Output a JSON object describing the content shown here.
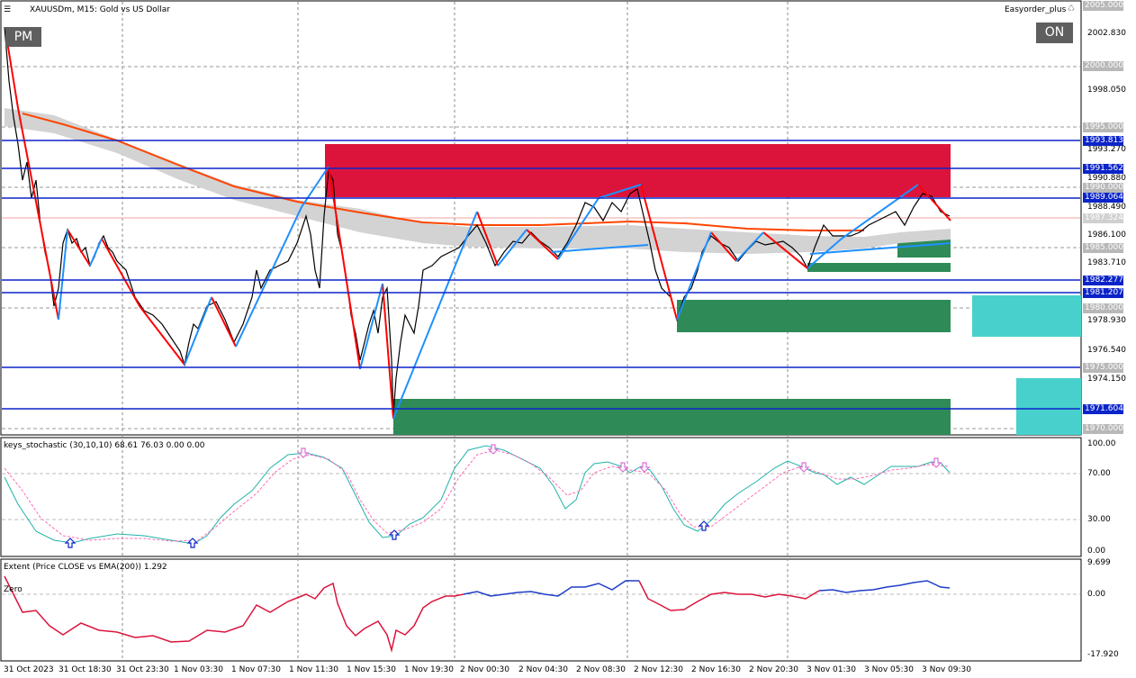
{
  "header": {
    "symbol_title": "XAUUSDm, M15:  Gold vs US Dollar",
    "expert_name": "Easyorder_plus"
  },
  "buttons": {
    "pm": "PM",
    "on": "ON"
  },
  "colors": {
    "level_line": "#0b24c9",
    "supply_zone": "#dc143c",
    "demand_zone": "#2e8b57",
    "cyan_zone": "#48d1cc",
    "ema_line": "#ff4500",
    "zigzag_down": "#ff0000",
    "zigzag_up": "#1e90ff"
  },
  "price_axis": {
    "labels": [
      "2002.830",
      "1998.050",
      "1993.270",
      "1990.880",
      "1988.490",
      "1986.100",
      "1983.710",
      "1978.930",
      "1976.540",
      "1974.150"
    ],
    "tags": [
      {
        "text": "2005.000",
        "style": "gray"
      },
      {
        "text": "2000.000",
        "style": "gray"
      },
      {
        "text": "1995.000",
        "style": "gray"
      },
      {
        "text": "1993.813",
        "style": "blue"
      },
      {
        "text": "1991.562",
        "style": "blue"
      },
      {
        "text": "1990.000",
        "style": "gray"
      },
      {
        "text": "1989.064",
        "style": "blue"
      },
      {
        "text": "1987.324",
        "style": "gray"
      },
      {
        "text": "1985.000",
        "style": "gray"
      },
      {
        "text": "1982.277",
        "style": "blue"
      },
      {
        "text": "1981.207",
        "style": "blue"
      },
      {
        "text": "1980.000",
        "style": "gray"
      },
      {
        "text": "1975.000",
        "style": "gray"
      },
      {
        "text": "1971.604",
        "style": "blue"
      },
      {
        "text": "1970.000",
        "style": "gray"
      }
    ]
  },
  "stochastic": {
    "title": "keys_stochastic (30,10,10) 68.61 76.03 0.00 0.00",
    "axis": [
      "100.00",
      "70.00",
      "30.00",
      "0.00"
    ]
  },
  "extent": {
    "title": "Extent (Price CLOSE vs EMA(200)) 1.292",
    "zero_label": "Zero",
    "axis": [
      "9.699",
      "0.00",
      "-17.920"
    ]
  },
  "time_axis": [
    "31 Oct 2023",
    "31 Oct 18:30",
    "31 Oct 23:30",
    "1 Nov 03:30",
    "1 Nov 07:30",
    "1 Nov 11:30",
    "1 Nov 15:30",
    "1 Nov 19:30",
    "2 Nov 00:30",
    "2 Nov 04:30",
    "2 Nov 08:30",
    "2 Nov 12:30",
    "2 Nov 16:30",
    "2 Nov 20:30",
    "3 Nov 01:30",
    "3 Nov 05:30",
    "3 Nov 09:30"
  ]
}
